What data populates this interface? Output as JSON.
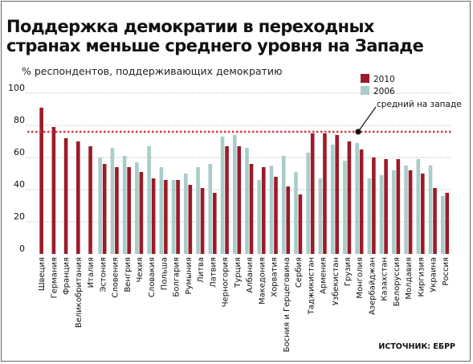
{
  "header": {
    "title_line1": "Поддержка демократии в переходных",
    "title_line2": "странах меньше среднего уровня на Западе",
    "subtitle": "% респондентов, поддерживающих демократию"
  },
  "source": "ИСТОЧНИК: ЕБРР",
  "colors": {
    "s2010": "#9b1b2a",
    "s2006": "#a9cdc9",
    "reference": "#d8333a",
    "grid": "#999999"
  },
  "chart_data": {
    "type": "bar",
    "title": "Поддержка демократии в переходных странах меньше среднего уровня на Западе",
    "ylabel": "% респондентов, поддерживающих демократию",
    "ylim": [
      0,
      100
    ],
    "yticks": [
      0,
      20,
      40,
      60,
      80,
      100
    ],
    "legend_position": "top-right",
    "categories": [
      "Швеция",
      "Германия",
      "Франция",
      "Великобритания",
      "Италия",
      "Эстония",
      "Словения",
      "Венгрия",
      "Чехия",
      "Словакия",
      "Польша",
      "Болгария",
      "Румыния",
      "Литва",
      "Латвия",
      "Черногория",
      "Турция",
      "Албания",
      "Македония",
      "Хорватия",
      "Босния и Герцеговина",
      "Сербия",
      "Таджикистан",
      "Армения",
      "Узбекистан",
      "Грузия",
      "Монголия",
      "Азербайджан",
      "Казахстан",
      "Белоруссия",
      "Молдавия",
      "Киргизия",
      "Украина",
      "Россия"
    ],
    "series": [
      {
        "name": "2010",
        "values": [
          91,
          79,
          72,
          70,
          67,
          56,
          54,
          54,
          51,
          47,
          46,
          46,
          43,
          41,
          38,
          67,
          67,
          56,
          54,
          48,
          42,
          37,
          75,
          75,
          74,
          70,
          65,
          60,
          59,
          59,
          52,
          50,
          41,
          38
        ]
      },
      {
        "name": "2006",
        "values": [
          null,
          null,
          null,
          null,
          null,
          60,
          66,
          61,
          57,
          67,
          54,
          46,
          50,
          54,
          56,
          73,
          74,
          66,
          46,
          55,
          61,
          51,
          63,
          47,
          68,
          58,
          69,
          47,
          49,
          52,
          55,
          59,
          55,
          36
        ]
      }
    ],
    "reference_line": {
      "label": "средний на западе",
      "value": 76
    }
  }
}
